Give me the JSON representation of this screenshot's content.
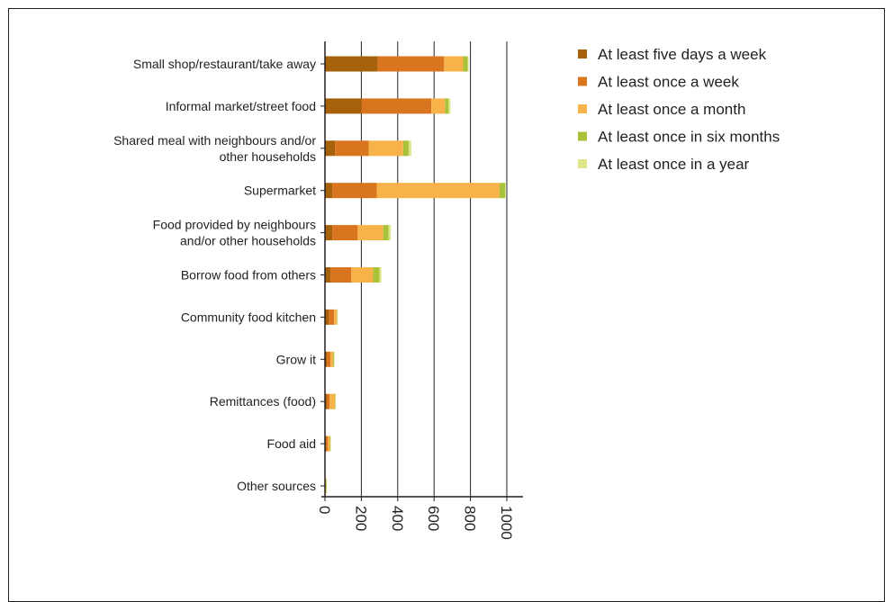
{
  "chart_data": {
    "type": "bar",
    "orientation": "horizontal",
    "stacked": true,
    "categories": [
      "Small shop/restaurant/take away",
      "Informal market/street food",
      "Shared meal with neighbours and/or other households",
      "Supermarket",
      "Food provided by neighbours and/or other households",
      "Borrow food from others",
      "Community food kitchen",
      "Grow it",
      "Remittances (food)",
      "Food aid",
      "Other sources"
    ],
    "category_lines": [
      [
        "Small shop/restaurant/take away"
      ],
      [
        "Informal market/street food"
      ],
      [
        "Shared meal with neighbours and/or",
        "other households"
      ],
      [
        "Supermarket"
      ],
      [
        "Food provided by neighbours",
        "and/or other households"
      ],
      [
        "Borrow food from others"
      ],
      [
        "Community food kitchen"
      ],
      [
        "Grow it"
      ],
      [
        "Remittances (food)"
      ],
      [
        "Food aid"
      ],
      [
        "Other sources"
      ]
    ],
    "series": [
      {
        "name": "At least five days a week",
        "color": "#a6620b",
        "values": [
          290,
          200,
          55,
          40,
          40,
          30,
          20,
          10,
          10,
          5,
          0
        ]
      },
      {
        "name": "At least once a week",
        "color": "#d9741f",
        "values": [
          365,
          385,
          185,
          245,
          140,
          115,
          30,
          20,
          15,
          10,
          2
        ]
      },
      {
        "name": "At least once a month",
        "color": "#f7b24a",
        "values": [
          105,
          75,
          190,
          675,
          140,
          120,
          15,
          15,
          30,
          12,
          3
        ]
      },
      {
        "name": "At least once in six months",
        "color": "#a8c23a",
        "values": [
          25,
          20,
          30,
          30,
          30,
          35,
          3,
          5,
          2,
          3,
          2
        ]
      },
      {
        "name": "At least once in a year",
        "color": "#dfe68a",
        "values": [
          5,
          10,
          15,
          5,
          12,
          10,
          2,
          2,
          2,
          2,
          3
        ]
      }
    ],
    "x_ticks": [
      "0",
      "200",
      "400",
      "600",
      "800",
      "1000"
    ],
    "xlim": [
      0,
      1100
    ],
    "title": "",
    "xlabel": "",
    "ylabel": "",
    "grid": "vertical",
    "legend_position": "top-right"
  }
}
